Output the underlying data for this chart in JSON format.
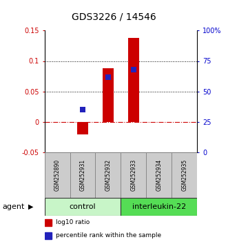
{
  "title": "GDS3226 / 14546",
  "samples": [
    "GSM252890",
    "GSM252931",
    "GSM252932",
    "GSM252933",
    "GSM252934",
    "GSM252935"
  ],
  "log10_ratio": [
    0.0,
    -0.02,
    0.088,
    0.138,
    0.0,
    0.0
  ],
  "percentile_rank": [
    null,
    35.0,
    62.0,
    68.0,
    null,
    null
  ],
  "ylim_left": [
    -0.05,
    0.15
  ],
  "ylim_right": [
    0,
    100
  ],
  "yticks_left": [
    -0.05,
    0.0,
    0.05,
    0.1,
    0.15
  ],
  "yticks_right": [
    0,
    25,
    50,
    75,
    100
  ],
  "ytick_labels_left": [
    "-0.05",
    "0",
    "0.05",
    "0.1",
    "0.15"
  ],
  "ytick_labels_right": [
    "0",
    "25",
    "50",
    "75",
    "100%"
  ],
  "dotted_lines": [
    0.05,
    0.1
  ],
  "zero_line": 0.0,
  "groups": [
    {
      "label": "control",
      "indices": [
        0,
        1,
        2
      ],
      "color": "#c8f5c8"
    },
    {
      "label": "interleukin-22",
      "indices": [
        3,
        4,
        5
      ],
      "color": "#55dd55"
    }
  ],
  "bar_color": "#cc0000",
  "dot_color": "#2222bb",
  "bar_width": 0.45,
  "dot_size": 28,
  "left_label_color": "#cc0000",
  "right_label_color": "#0000cc",
  "agent_label": "agent",
  "legend_items": [
    {
      "label": "log10 ratio",
      "color": "#cc0000"
    },
    {
      "label": "percentile rank within the sample",
      "color": "#2222bb"
    }
  ],
  "sample_box_color": "#cccccc",
  "sample_box_edge": "#888888",
  "title_fontsize": 10,
  "tick_fontsize": 7,
  "sample_fontsize": 5.5,
  "group_fontsize": 8,
  "legend_fontsize": 6.5,
  "agent_fontsize": 8
}
